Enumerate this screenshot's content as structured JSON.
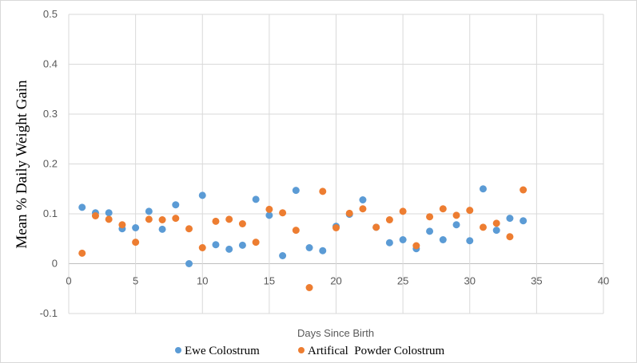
{
  "chart_data": {
    "type": "scatter",
    "title": "",
    "xlabel": "Days Since Birth",
    "ylabel": "Mean % Daily Weight Gain",
    "xlim": [
      0,
      40
    ],
    "ylim": [
      -0.1,
      0.5
    ],
    "xticks": [
      "0",
      "5",
      "10",
      "15",
      "20",
      "25",
      "30",
      "35",
      "40"
    ],
    "yticks": [
      "-0.1",
      "0",
      "0.1",
      "0.2",
      "0.3",
      "0.4",
      "0.5"
    ],
    "grid": true,
    "legend_position": "bottom",
    "x": [
      1,
      2,
      3,
      4,
      5,
      6,
      7,
      8,
      9,
      10,
      11,
      12,
      13,
      14,
      15,
      16,
      17,
      18,
      19,
      20,
      21,
      22,
      23,
      24,
      25,
      26,
      27,
      28,
      29,
      30,
      31,
      32,
      33,
      34
    ],
    "series": [
      {
        "name": "Ewe Colostrum",
        "color": "#5b9bd5",
        "values": [
          0.113,
          0.102,
          0.102,
          0.07,
          0.072,
          0.105,
          0.069,
          0.118,
          0.0,
          0.137,
          0.038,
          0.029,
          0.037,
          0.129,
          0.097,
          0.016,
          0.147,
          0.032,
          0.026,
          0.075,
          0.099,
          0.128,
          0.073,
          0.042,
          0.048,
          0.03,
          0.065,
          0.048,
          0.078,
          0.046,
          0.15,
          0.067,
          0.091,
          0.086
        ]
      },
      {
        "name": "Artifical  Powder Colostrum",
        "color": "#ed7d31",
        "values": [
          0.021,
          0.096,
          0.089,
          0.078,
          0.043,
          0.089,
          0.088,
          0.091,
          0.07,
          0.032,
          0.085,
          0.089,
          0.08,
          0.043,
          0.109,
          0.102,
          0.067,
          -0.048,
          0.145,
          0.072,
          0.101,
          0.11,
          0.073,
          0.088,
          0.105,
          0.036,
          0.094,
          0.11,
          0.097,
          0.107,
          0.073,
          0.081,
          0.054,
          0.148
        ]
      }
    ]
  }
}
